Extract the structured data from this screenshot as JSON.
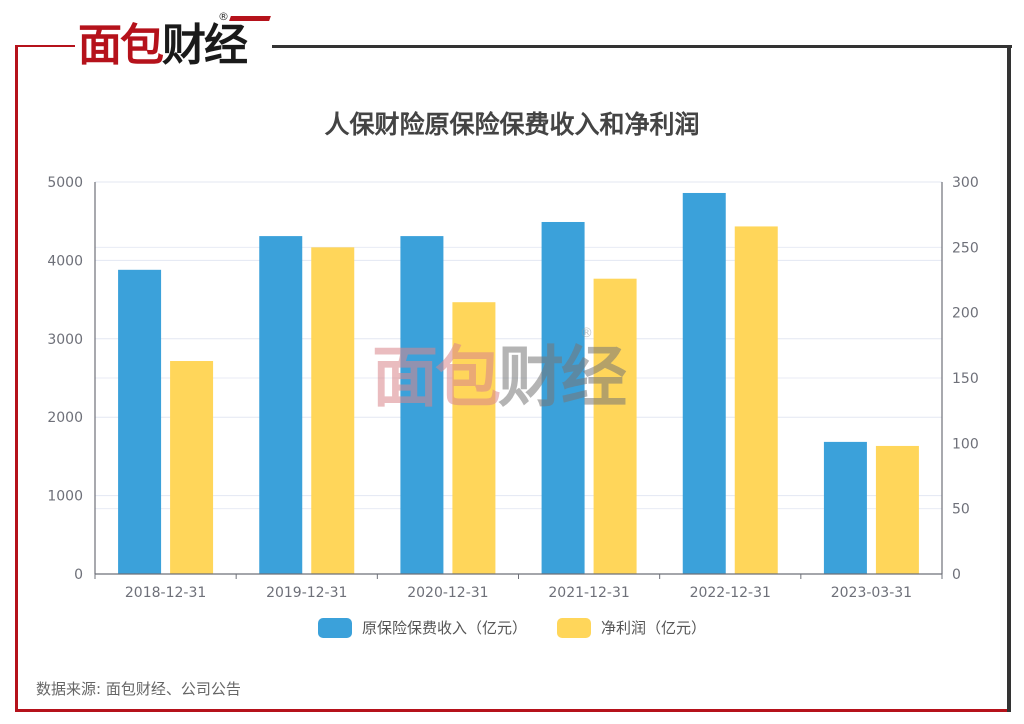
{
  "brand": {
    "logo_red": "面包",
    "logo_black": "财经",
    "registered_mark": "®",
    "frame_color_red": "#b5121b",
    "frame_color_dark": "#333333"
  },
  "title": "人保财险原保险保费收入和净利润",
  "watermark": {
    "red": "面包",
    "gray": "财经",
    "registered_mark": "®"
  },
  "legend": [
    {
      "label": "原保险保费收入（亿元）",
      "color": "#3ba1da"
    },
    {
      "label": "净利润（亿元）",
      "color": "#ffd65a"
    }
  ],
  "source": "数据来源: 面包财经、公司公告",
  "chart_data": {
    "type": "bar",
    "title": "人保财险原保险保费收入和净利润",
    "categories": [
      "2018-12-31",
      "2019-12-31",
      "2020-12-31",
      "2021-12-31",
      "2022-12-31",
      "2023-03-31"
    ],
    "series": [
      {
        "name": "原保险保费收入（亿元）",
        "axis": "left",
        "color": "#3ba1da",
        "values": [
          3880,
          4310,
          4310,
          4490,
          4860,
          1685
        ]
      },
      {
        "name": "净利润（亿元）",
        "axis": "right",
        "color": "#ffd65a",
        "values": [
          163,
          250,
          208,
          226,
          266,
          98
        ]
      }
    ],
    "y_left": {
      "ticks": [
        0,
        1000,
        2000,
        3000,
        4000,
        5000
      ],
      "ylim": [
        0,
        5000
      ]
    },
    "y_right": {
      "ticks": [
        0,
        50,
        100,
        150,
        200,
        250,
        300
      ],
      "ylim": [
        0,
        300
      ]
    },
    "xlabel": "",
    "ylabel": "",
    "grid": true,
    "legend_position": "bottom"
  }
}
